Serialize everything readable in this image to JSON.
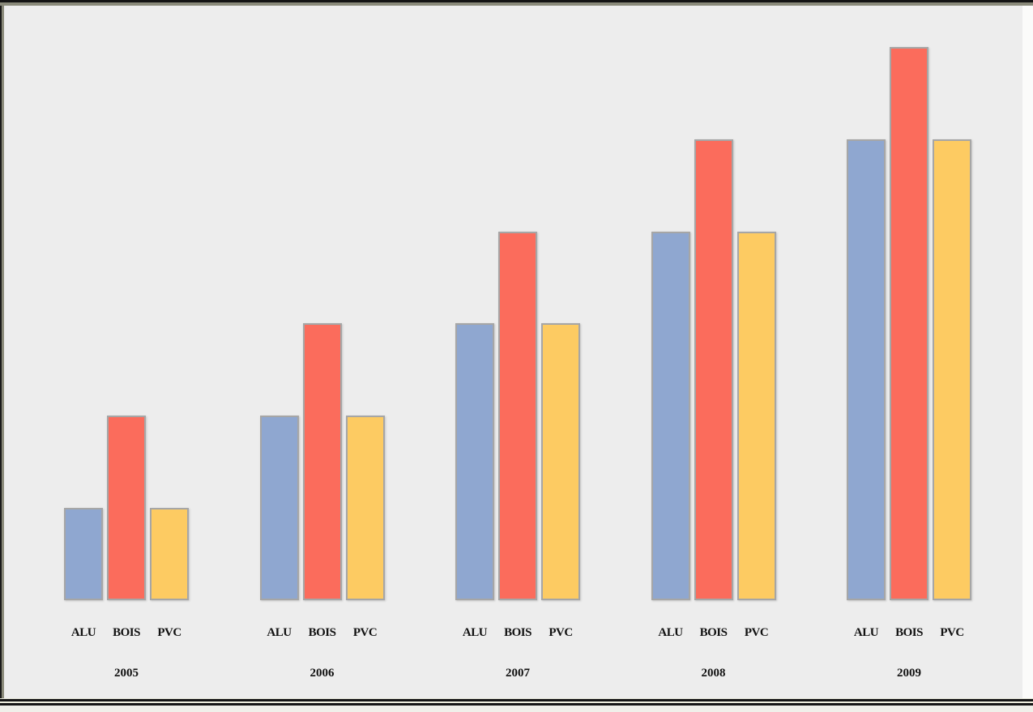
{
  "chart_data": {
    "type": "bar",
    "categories": [
      "2005",
      "2006",
      "2007",
      "2008",
      "2009"
    ],
    "series": [
      {
        "name": "ALU",
        "color": "#8FA7D0",
        "values": [
          1,
          2,
          3,
          4,
          5
        ]
      },
      {
        "name": "BOIS",
        "color": "#FB6C5C",
        "values": [
          2,
          3,
          4,
          5,
          6
        ]
      },
      {
        "name": "PVC",
        "color": "#FDCB62",
        "values": [
          1,
          2,
          3,
          4,
          5
        ]
      }
    ],
    "title": "",
    "xlabel": "",
    "ylabel": "",
    "ylim": [
      0,
      6
    ],
    "grid": false,
    "legend_position": "none",
    "axes_visible": false,
    "group_labels_under_bars": [
      "ALU",
      "BOIS",
      "PVC"
    ],
    "bar_border_color": "#A6A6A6",
    "plot_background": "#EDEDED"
  },
  "frame": {
    "outer_border_color": "#141414",
    "inner_border_color": "#8A8A7A",
    "footer_color": "#F0F0EA"
  }
}
